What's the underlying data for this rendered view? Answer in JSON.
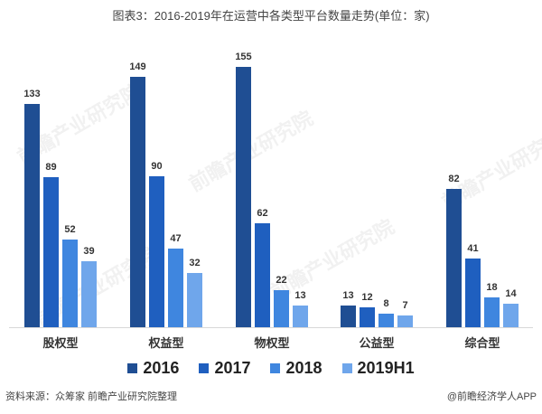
{
  "title": "图表3：2016-2019年在运营中各类型平台数量走势(单位：家)",
  "source": "资料来源：众筹家 前瞻产业研究院整理",
  "credit": "@前瞻经济学人APP",
  "watermark": "前瞻产业研究院",
  "colors": {
    "2016": "#1f4e93",
    "2017": "#1f5fbf",
    "2018": "#3f86df",
    "2019H1": "#6fa6eb"
  },
  "chart_data": {
    "type": "bar",
    "title": "图表3：2016-2019年在运营中各类型平台数量走势(单位：家)",
    "xlabel": "",
    "ylabel": "",
    "categories": [
      "股权型",
      "权益型",
      "物权型",
      "公益型",
      "综合型"
    ],
    "series": [
      {
        "name": "2016",
        "values": [
          133,
          149,
          155,
          13,
          82
        ]
      },
      {
        "name": "2017",
        "values": [
          89,
          90,
          62,
          12,
          41
        ]
      },
      {
        "name": "2018",
        "values": [
          52,
          47,
          22,
          8,
          18
        ]
      },
      {
        "name": "2019H1",
        "values": [
          39,
          32,
          13,
          7,
          14
        ]
      }
    ],
    "ylim": [
      0,
      160
    ],
    "grid": false,
    "legend_position": "bottom",
    "data_labels": true
  }
}
